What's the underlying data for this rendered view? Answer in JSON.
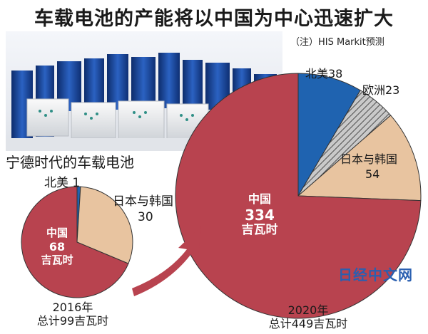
{
  "title": "车载电池的产能将以中国为中心迅速扩大",
  "note": "（注）HIS Markit预测",
  "photo_caption": "宁德时代的车载电池",
  "logo_text": "日经中文网",
  "colors": {
    "china": "#b8434f",
    "japan_korea": "#e8c4a0",
    "europe": "#9a9a9a",
    "north_america": "#1f63b0"
  },
  "chart_data": [
    {
      "type": "pie",
      "year_label": "2016年",
      "total_label": "总计99吉瓦时",
      "total": 99,
      "slices": [
        {
          "key": "north_america",
          "name": "北美",
          "value": 1,
          "label": "北美 1"
        },
        {
          "key": "japan_korea",
          "name": "日本与韩国",
          "value": 30,
          "label_name": "日本与韩国",
          "label_value": "30"
        },
        {
          "key": "china",
          "name": "中国",
          "value": 68,
          "label_name": "中国",
          "label_value": "68",
          "label_unit": "吉瓦时"
        }
      ]
    },
    {
      "type": "pie",
      "year_label": "2020年",
      "total_label": "总计449吉瓦时",
      "total": 449,
      "slices": [
        {
          "key": "north_america",
          "name": "北美",
          "value": 38,
          "label": "北美38"
        },
        {
          "key": "europe",
          "name": "欧洲",
          "value": 23,
          "label": "欧洲23"
        },
        {
          "key": "japan_korea",
          "name": "日本与韩国",
          "value": 54,
          "label_name": "日本与韩国",
          "label_value": "54"
        },
        {
          "key": "china",
          "name": "中国",
          "value": 334,
          "label_name": "中国",
          "label_value": "334",
          "label_unit": "吉瓦时"
        }
      ]
    }
  ]
}
